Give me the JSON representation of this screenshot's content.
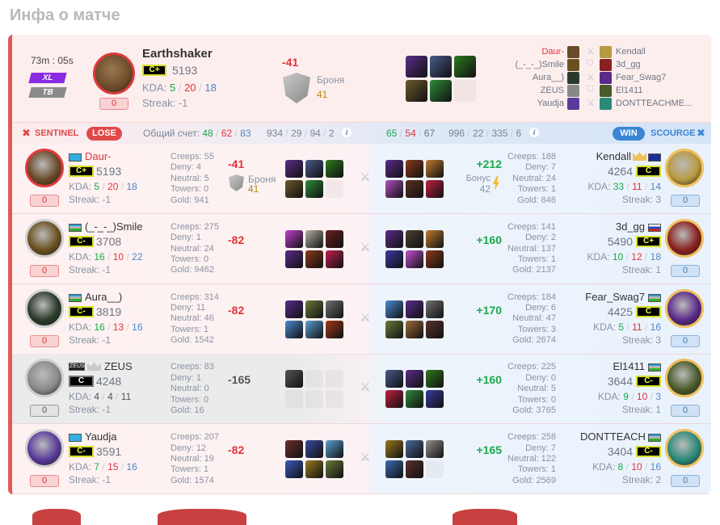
{
  "page_title": "Инфа о матче",
  "labels": {
    "creeps": "Creeps:",
    "deny": "Deny:",
    "neutral": "Neutral:",
    "towers": "Towers:",
    "gold": "Gold:",
    "kda": "KDA:",
    "streak": "Streak:",
    "armor": "Броня",
    "bonus": "Бонус",
    "total_score": "Общий счет:"
  },
  "header": {
    "duration": "73m : 05s",
    "mode_badges": [
      "XL",
      "TB"
    ],
    "hero": "Earthshaker",
    "hero_color": "#6b4a2a",
    "rating_badge": "C+",
    "rating": "5193",
    "kda": [
      "5",
      "20",
      "18"
    ],
    "streak": "-1",
    "score": "0",
    "diff": "-41",
    "armor_value": "41",
    "items": [
      "#5a2c8a",
      "#4a5a8a",
      "#2f7a1f",
      "#6a5a2a",
      "#2f8a3a",
      ""
    ],
    "players": [
      {
        "left": "Daur-",
        "left_highlight": true,
        "left_color": "#6b4a2a",
        "icon": "swords-icon",
        "right": "Kendall",
        "right_color": "#b89a40"
      },
      {
        "left": "(_-_-_)Smile",
        "left_color": "#6a5020",
        "icon": "shield-icon",
        "right": "3d_gg",
        "right_color": "#8a2020"
      },
      {
        "left": "Aura__)",
        "left_color": "#2a3a2a",
        "icon": "swords-icon",
        "right": "Fear_Swag7",
        "right_color": "#5a2a8a"
      },
      {
        "left": "ZEUS",
        "left_color": "#888888",
        "icon": "shield-icon",
        "right": "El1411",
        "right_color": "#4a5a2a"
      },
      {
        "left": "Yaudja",
        "left_color": "#5a3a9a",
        "icon": "swords-icon",
        "right": "DONTTEACHME...",
        "right_color": "#2a8a7a"
      }
    ]
  },
  "teams": {
    "left": {
      "name": "SENTINEL",
      "result": "LOSE",
      "kda": [
        "48",
        "62",
        "83"
      ],
      "totals": [
        "934",
        "29",
        "94",
        "2"
      ],
      "color": "#e0484a"
    },
    "right": {
      "name": "SCOURGE",
      "result": "WIN",
      "kda": [
        "65",
        "54",
        "67"
      ],
      "totals": [
        "996",
        "22",
        "335",
        "6"
      ],
      "color": "#3a86d4"
    }
  },
  "rows": [
    {
      "left": {
        "name": "Daur-",
        "highlight": true,
        "flag": "kz",
        "rating_badge": "C+",
        "rating": "5193",
        "kda": [
          "5",
          "20",
          "18"
        ],
        "streak": "-1",
        "score": "0",
        "creeps": "55",
        "deny": "4",
        "neutral": "5",
        "towers": "0",
        "gold": "941",
        "diff": "-41",
        "armor": "41",
        "hero_color": "#6b4a2a",
        "border": "#e03a3a",
        "items": [
          "#5a2c8a",
          "#4a5a8a",
          "#2f7a1f",
          "#6a5a2a",
          "#2f8a3a",
          ""
        ]
      },
      "right": {
        "name": "Kendall",
        "crown": true,
        "flag": "eu",
        "rating_badge": "C",
        "rating": "4264",
        "kda": [
          "33",
          "11",
          "14"
        ],
        "streak": "3",
        "score": "0",
        "creeps": "188",
        "deny": "7",
        "neutral": "24",
        "towers": "1",
        "gold": "846",
        "diff": "+212",
        "bonus": "42",
        "hero_color": "#b89a40",
        "items": [
          "#5a2c8a",
          "#8a3a1a",
          "#c07a30",
          "#b050c0",
          "#5a3020",
          "#c02040"
        ]
      }
    },
    {
      "left": {
        "name": "(_-_-_)Smile",
        "flag": "uz",
        "rating_badge": "C-",
        "rating": "3708",
        "kda": [
          "16",
          "10",
          "22"
        ],
        "streak": "-1",
        "score": "0",
        "creeps": "275",
        "deny": "1",
        "neutral": "24",
        "towers": "0",
        "gold": "9462",
        "diff": "-82",
        "hero_color": "#6a5020",
        "border": "#cfcfcf",
        "items": [
          "#c040d0",
          "#b0b0a0",
          "#6a2020",
          "#5a2c8a",
          "#8a3a1a",
          "#c02050"
        ]
      },
      "right": {
        "name": "3d_gg",
        "flag": "ru",
        "rating_badge": "C+",
        "rating": "5490",
        "kda": [
          "10",
          "12",
          "18"
        ],
        "streak": "1",
        "score": "0",
        "creeps": "141",
        "deny": "2",
        "neutral": "137",
        "towers": "1",
        "gold": "2137",
        "diff": "+160",
        "hero_color": "#8a2020",
        "items": [
          "#5a2c8a",
          "#4a4030",
          "#c07a30",
          "#3a3aa0",
          "#c050d0",
          "#8a3a1a"
        ]
      }
    },
    {
      "left": {
        "name": "Aura__)",
        "flag": "uz",
        "rating_badge": "C-",
        "rating": "3819",
        "kda": [
          "16",
          "13",
          "16"
        ],
        "streak": "-1",
        "score": "0",
        "creeps": "314",
        "deny": "11",
        "neutral": "46",
        "towers": "1",
        "gold": "1542",
        "diff": "-82",
        "hero_color": "#2a3a2a",
        "border": "#cfcfcf",
        "items": [
          "#5a2c8a",
          "#6a7a3a",
          "#707070",
          "#4a8ad0",
          "#5aa0d0",
          "#a03a1a"
        ]
      },
      "right": {
        "name": "Fear_Swag7",
        "flag": "uz",
        "rating_badge": "C",
        "rating": "4425",
        "kda": [
          "5",
          "11",
          "16"
        ],
        "streak": "3",
        "score": "0",
        "creeps": "184",
        "deny": "6",
        "neutral": "47",
        "towers": "3",
        "gold": "2674",
        "diff": "+170",
        "hero_color": "#5a2a8a",
        "items": [
          "#4a8ad0",
          "#5a2c8a",
          "#707070",
          "#6a7a3a",
          "#9a6a3a",
          "#5a3030"
        ]
      }
    },
    {
      "leaver": true,
      "left": {
        "name": "ZEUS",
        "clan": "ZEUS",
        "crown": true,
        "rating_badge": "C",
        "rating": "4248",
        "kda": [
          "4",
          "4",
          "11"
        ],
        "streak": "-1",
        "score": "0",
        "creeps": "83",
        "deny": "1",
        "neutral": "0",
        "towers": "0",
        "gold": "16",
        "diff": "-165",
        "hero_color": "#8a8a8a",
        "border": "#cfcfcf",
        "items": [
          "#555555",
          "",
          "",
          "",
          "",
          ""
        ]
      },
      "right": {
        "name": "El1411",
        "flag": "uz",
        "rating_badge": "C-",
        "rating": "3644",
        "kda": [
          "9",
          "10",
          "3"
        ],
        "streak": "1",
        "score": "0",
        "creeps": "225",
        "deny": "0",
        "neutral": "5",
        "towers": "0",
        "gold": "3765",
        "diff": "+160",
        "hero_color": "#4a5a2a",
        "items": [
          "#4a5a8a",
          "#5a2c8a",
          "#2f7a1f",
          "#c02040",
          "#2f8a3a",
          "#3a3aa0"
        ]
      }
    },
    {
      "left": {
        "name": "Yaudja",
        "flag": "kz",
        "rating_badge": "C-",
        "rating": "3591",
        "kda": [
          "7",
          "15",
          "16"
        ],
        "streak": "-1",
        "score": "0",
        "creeps": "207",
        "deny": "12",
        "neutral": "19",
        "towers": "1",
        "gold": "1574",
        "diff": "-82",
        "hero_color": "#5a3a9a",
        "border": "#cfcfcf",
        "items": [
          "#6a3030",
          "#3a4aa0",
          "#5aa0d0",
          "#3a5ac0",
          "#9a7a20",
          "#6a7a3a"
        ]
      },
      "right": {
        "name": "DONTTEACHM",
        "flag": "uz",
        "rating_badge": "C-",
        "rating": "3404",
        "kda": [
          "8",
          "10",
          "16"
        ],
        "streak": "2",
        "score": "0",
        "creeps": "258",
        "deny": "7",
        "neutral": "122",
        "towers": "1",
        "gold": "2569",
        "diff": "+165",
        "hero_color": "#2a8a7a",
        "items": [
          "#9a7a20",
          "#4a6a9a",
          "#909090",
          "#3a6ab0",
          "#5a3030",
          ""
        ]
      }
    }
  ]
}
